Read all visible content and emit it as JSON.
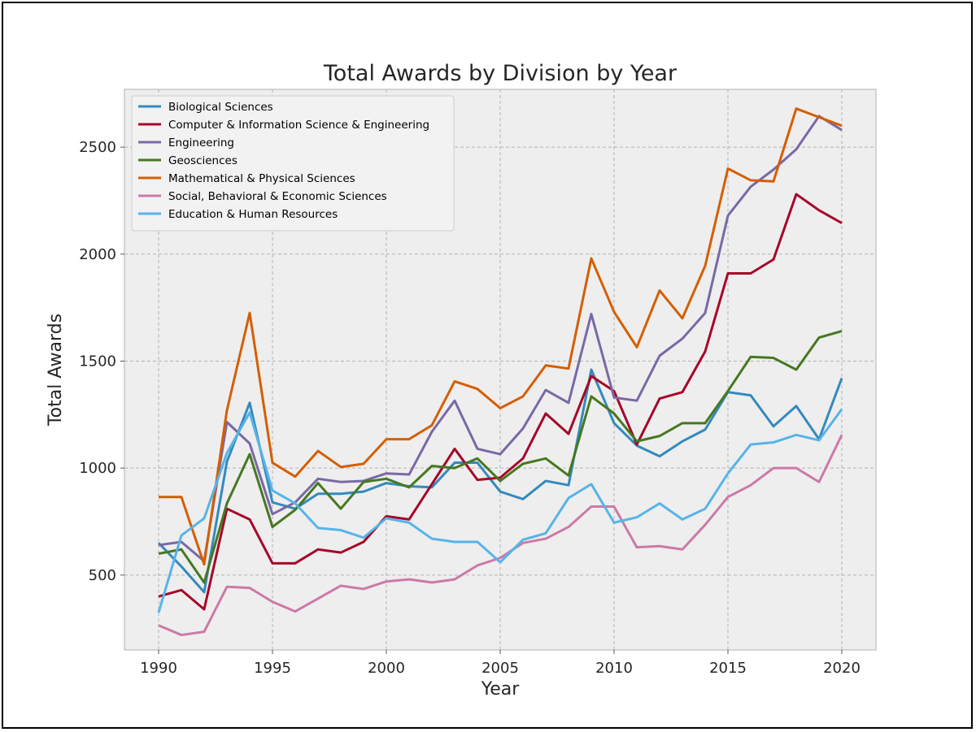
{
  "chart_data": {
    "type": "line",
    "title": "Total Awards by Division by Year",
    "xlabel": "Year",
    "ylabel": "Total Awards",
    "xlim": [
      1988.5,
      2021.5
    ],
    "ylim": [
      150,
      2770
    ],
    "xticks": [
      1990,
      1995,
      2000,
      2005,
      2010,
      2015,
      2020
    ],
    "yticks": [
      500,
      1000,
      1500,
      2000,
      2500
    ],
    "grid": true,
    "legend_position": "top-left",
    "x": [
      1990,
      1991,
      1992,
      1993,
      1994,
      1995,
      1996,
      1997,
      1998,
      1999,
      2000,
      2001,
      2002,
      2003,
      2004,
      2005,
      2006,
      2007,
      2008,
      2009,
      2010,
      2011,
      2012,
      2013,
      2014,
      2015,
      2016,
      2017,
      2018,
      2019,
      2020
    ],
    "series": [
      {
        "name": "Biological Sciences",
        "color": "#348ABD",
        "values": [
          650,
          540,
          420,
          1030,
          1305,
          840,
          810,
          880,
          880,
          890,
          930,
          915,
          910,
          1025,
          1025,
          890,
          855,
          940,
          920,
          1460,
          1210,
          1105,
          1055,
          1125,
          1180,
          1355,
          1340,
          1195,
          1290,
          1135,
          1420
        ]
      },
      {
        "name": "Computer & Information Science & Engineering",
        "color": "#A60628",
        "values": [
          400,
          430,
          340,
          810,
          760,
          555,
          555,
          620,
          605,
          655,
          775,
          760,
          925,
          1090,
          945,
          955,
          1045,
          1255,
          1160,
          1430,
          1360,
          1110,
          1325,
          1355,
          1545,
          1910,
          1910,
          1975,
          2280,
          2205,
          2145
        ]
      },
      {
        "name": "Engineering",
        "color": "#7A68A6",
        "values": [
          640,
          655,
          565,
          1215,
          1115,
          785,
          840,
          950,
          935,
          940,
          975,
          970,
          1170,
          1315,
          1090,
          1065,
          1185,
          1365,
          1305,
          1720,
          1330,
          1315,
          1525,
          1605,
          1725,
          2180,
          2315,
          2395,
          2490,
          2645,
          2580
        ]
      },
      {
        "name": "Geosciences",
        "color": "#467821",
        "values": [
          600,
          620,
          465,
          835,
          1065,
          725,
          805,
          930,
          810,
          935,
          950,
          910,
          1010,
          1000,
          1045,
          940,
          1020,
          1045,
          965,
          1335,
          1255,
          1125,
          1150,
          1210,
          1210,
          1360,
          1520,
          1515,
          1460,
          1610,
          1640
        ]
      },
      {
        "name": "Mathematical & Physical Sciences",
        "color": "#D55E00",
        "values": [
          865,
          865,
          550,
          1270,
          1725,
          1025,
          960,
          1080,
          1005,
          1020,
          1135,
          1135,
          1200,
          1405,
          1370,
          1280,
          1335,
          1480,
          1465,
          1980,
          1730,
          1565,
          1830,
          1700,
          1945,
          2400,
          2345,
          2340,
          2680,
          2640,
          2600
        ]
      },
      {
        "name": "Social, Behavioral & Economic Sciences",
        "color": "#CC79A7",
        "values": [
          265,
          220,
          235,
          445,
          440,
          375,
          330,
          390,
          450,
          435,
          470,
          480,
          465,
          480,
          545,
          580,
          650,
          670,
          725,
          820,
          820,
          630,
          635,
          620,
          735,
          865,
          920,
          1000,
          1000,
          935,
          1155
        ]
      },
      {
        "name": "Education & Human Resources",
        "color": "#56B4E9",
        "values": [
          325,
          685,
          765,
          1070,
          1260,
          895,
          835,
          720,
          710,
          675,
          765,
          745,
          670,
          655,
          655,
          560,
          665,
          695,
          860,
          925,
          745,
          770,
          835,
          760,
          810,
          975,
          1110,
          1120,
          1155,
          1130,
          1275
        ]
      }
    ]
  }
}
